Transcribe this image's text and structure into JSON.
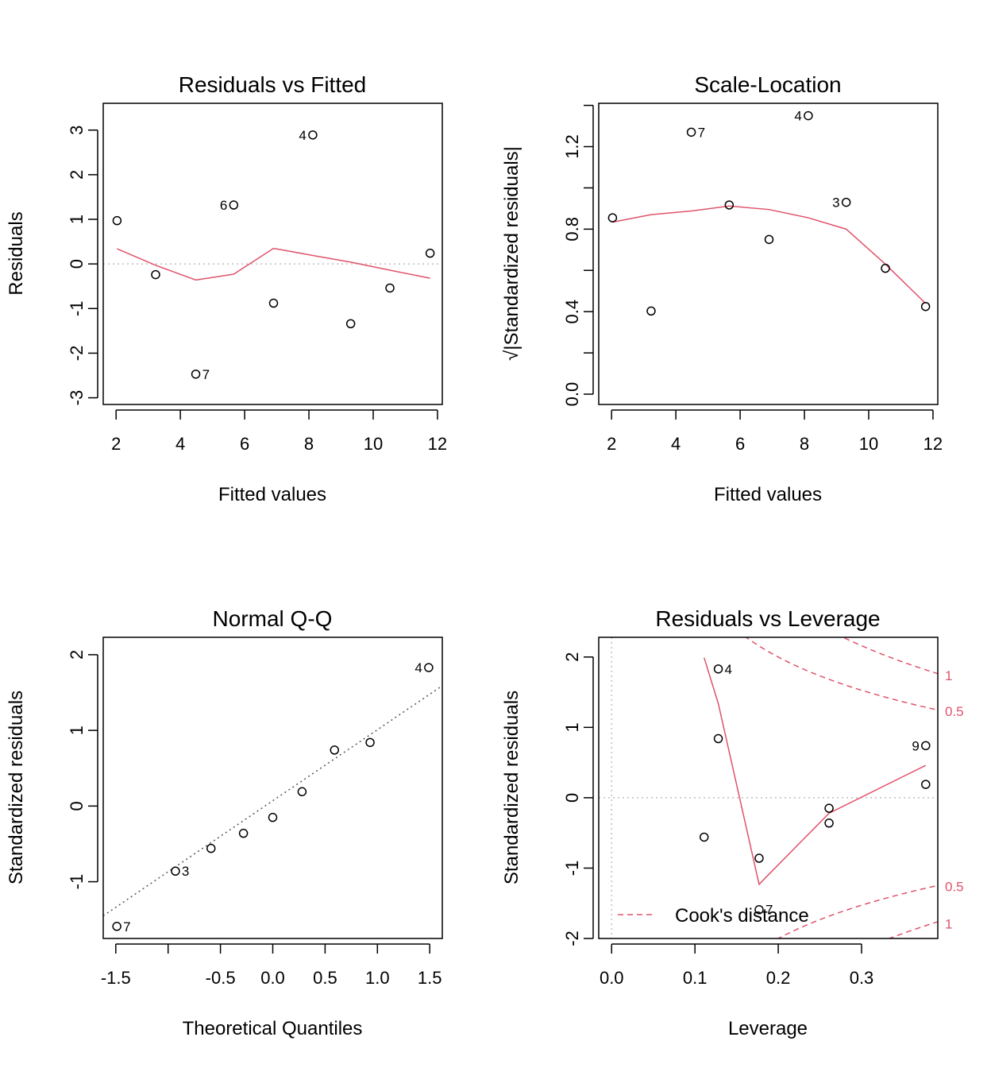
{
  "colors": {
    "smooth": "#DF536B",
    "reference": "#BEBEBE",
    "qqline": "#555555",
    "ink": "#000000"
  },
  "chart_data": [
    {
      "type": "scatter",
      "title": "Residuals vs Fitted",
      "xlabel": "Fitted values",
      "ylabel": "Residuals",
      "xlim": [
        1.6,
        12.15
      ],
      "ylim": [
        -3.15,
        3.6
      ],
      "xticks": [
        2,
        4,
        6,
        8,
        10,
        12
      ],
      "xtick_labels": [
        "2",
        "4",
        "6",
        "8",
        "10",
        "12"
      ],
      "yticks": [
        -3,
        -2,
        -1,
        0,
        1,
        2,
        3
      ],
      "ytick_labels": [
        "-3",
        "-2",
        "-1",
        "0",
        "1",
        "2",
        "3"
      ],
      "hline": 0,
      "points": [
        {
          "x": 2.03,
          "y": 0.97
        },
        {
          "x": 3.23,
          "y": -0.24
        },
        {
          "x": 4.48,
          "y": -2.47,
          "label": "7"
        },
        {
          "x": 5.66,
          "y": 1.32,
          "label": "6"
        },
        {
          "x": 6.9,
          "y": -0.88
        },
        {
          "x": 8.12,
          "y": 2.89,
          "label": "4"
        },
        {
          "x": 9.3,
          "y": -1.34
        },
        {
          "x": 10.52,
          "y": -0.54
        },
        {
          "x": 11.77,
          "y": 0.24
        }
      ],
      "smooth": [
        [
          2.03,
          0.34
        ],
        [
          3.23,
          -0.03
        ],
        [
          4.48,
          -0.36
        ],
        [
          5.66,
          -0.23
        ],
        [
          6.9,
          0.35
        ],
        [
          8.12,
          0.19
        ],
        [
          9.3,
          0.04
        ],
        [
          10.52,
          -0.14
        ],
        [
          11.77,
          -0.32
        ]
      ]
    },
    {
      "type": "scatter",
      "title": "Scale-Location",
      "xlabel": "Fitted values",
      "ylabel": "√|Standardized residuals|",
      "xlim": [
        1.6,
        12.15
      ],
      "ylim": [
        -0.05,
        1.41
      ],
      "xticks": [
        2,
        4,
        6,
        8,
        10,
        12
      ],
      "xtick_labels": [
        "2",
        "4",
        "6",
        "8",
        "10",
        "12"
      ],
      "yticks": [
        0.0,
        0.4,
        0.8,
        1.2
      ],
      "ytick_labels": [
        "0.0",
        "0.4",
        "0.8",
        "1.2"
      ],
      "minor_yticks": [
        0.2,
        0.6,
        1.0,
        1.4
      ],
      "points": [
        {
          "x": 2.03,
          "y": 0.855
        },
        {
          "x": 3.23,
          "y": 0.403
        },
        {
          "x": 4.48,
          "y": 1.27,
          "label": "7"
        },
        {
          "x": 5.66,
          "y": 0.917
        },
        {
          "x": 6.9,
          "y": 0.75
        },
        {
          "x": 8.12,
          "y": 1.35,
          "label": "4"
        },
        {
          "x": 9.3,
          "y": 0.93,
          "label": "3"
        },
        {
          "x": 10.52,
          "y": 0.61
        },
        {
          "x": 11.77,
          "y": 0.425
        }
      ],
      "smooth": [
        [
          2.03,
          0.834
        ],
        [
          3.23,
          0.87
        ],
        [
          4.48,
          0.888
        ],
        [
          5.66,
          0.912
        ],
        [
          6.9,
          0.895
        ],
        [
          8.12,
          0.855
        ],
        [
          9.3,
          0.8
        ],
        [
          10.52,
          0.63
        ],
        [
          11.77,
          0.44
        ]
      ]
    },
    {
      "type": "scatter",
      "title": "Normal Q-Q",
      "xlabel": "Theoretical Quantiles",
      "ylabel": "Standardized residuals",
      "xlim": [
        -1.62,
        1.62
      ],
      "ylim": [
        -1.75,
        2.23
      ],
      "xticks": [
        -1.5,
        -0.5,
        0.0,
        0.5,
        1.0,
        1.5
      ],
      "xtick_labels": [
        "-1.5",
        "-0.5",
        "0.0",
        "0.5",
        "1.0",
        "1.5"
      ],
      "minor_xticks": [
        -1.0
      ],
      "yticks": [
        -1,
        0,
        1,
        2
      ],
      "ytick_labels": [
        "-1",
        "0",
        "1",
        "2"
      ],
      "points": [
        {
          "x": -1.49,
          "y": -1.59,
          "label": "7"
        },
        {
          "x": -0.93,
          "y": -0.86,
          "label": "3"
        },
        {
          "x": -0.59,
          "y": -0.56
        },
        {
          "x": -0.28,
          "y": -0.36
        },
        {
          "x": 0.0,
          "y": -0.15
        },
        {
          "x": 0.28,
          "y": 0.19
        },
        {
          "x": 0.59,
          "y": 0.74
        },
        {
          "x": 0.93,
          "y": 0.84
        },
        {
          "x": 1.49,
          "y": 1.83,
          "label": "4"
        }
      ],
      "refline": [
        [
          -1.62,
          -1.45
        ],
        [
          1.62,
          1.59
        ]
      ]
    },
    {
      "type": "scatter",
      "title": "Residuals vs Leverage",
      "xlabel": "Leverage",
      "ylabel": "Standardized residuals",
      "xlim": [
        -0.0155,
        0.3915
      ],
      "ylim": [
        -2.0,
        2.28
      ],
      "xticks": [
        0.0,
        0.1,
        0.2,
        0.3
      ],
      "xtick_labels": [
        "0.0",
        "0.1",
        "0.2",
        "0.3"
      ],
      "yticks": [
        -2,
        -1,
        0,
        1,
        2
      ],
      "ytick_labels": [
        "-2",
        "-1",
        "0",
        "1",
        "2"
      ],
      "hline": 0,
      "vline": 0,
      "points": [
        {
          "x": 0.111,
          "y": -0.56
        },
        {
          "x": 0.128,
          "y": 1.83,
          "label": "4"
        },
        {
          "x": 0.128,
          "y": 0.84
        },
        {
          "x": 0.177,
          "y": -0.86
        },
        {
          "x": 0.177,
          "y": -1.59,
          "label": "7"
        },
        {
          "x": 0.261,
          "y": -0.15
        },
        {
          "x": 0.261,
          "y": -0.36
        },
        {
          "x": 0.377,
          "y": 0.74,
          "label": "9"
        },
        {
          "x": 0.377,
          "y": 0.19
        }
      ],
      "smooth": [
        [
          0.111,
          1.99
        ],
        [
          0.128,
          1.34
        ],
        [
          0.177,
          -1.23
        ],
        [
          0.261,
          -0.22
        ],
        [
          0.377,
          0.46
        ]
      ],
      "cooks_levels": [
        {
          "level": 0.5,
          "label": "0.5",
          "label_y_upper": 1.23,
          "label_y_lower": -1.26
        },
        {
          "level": 1,
          "label": "1",
          "label_y_upper": 1.74,
          "label_y_lower": -1.79
        }
      ],
      "legend": {
        "label": "Cook's distance",
        "position": "bottom-left"
      }
    }
  ]
}
